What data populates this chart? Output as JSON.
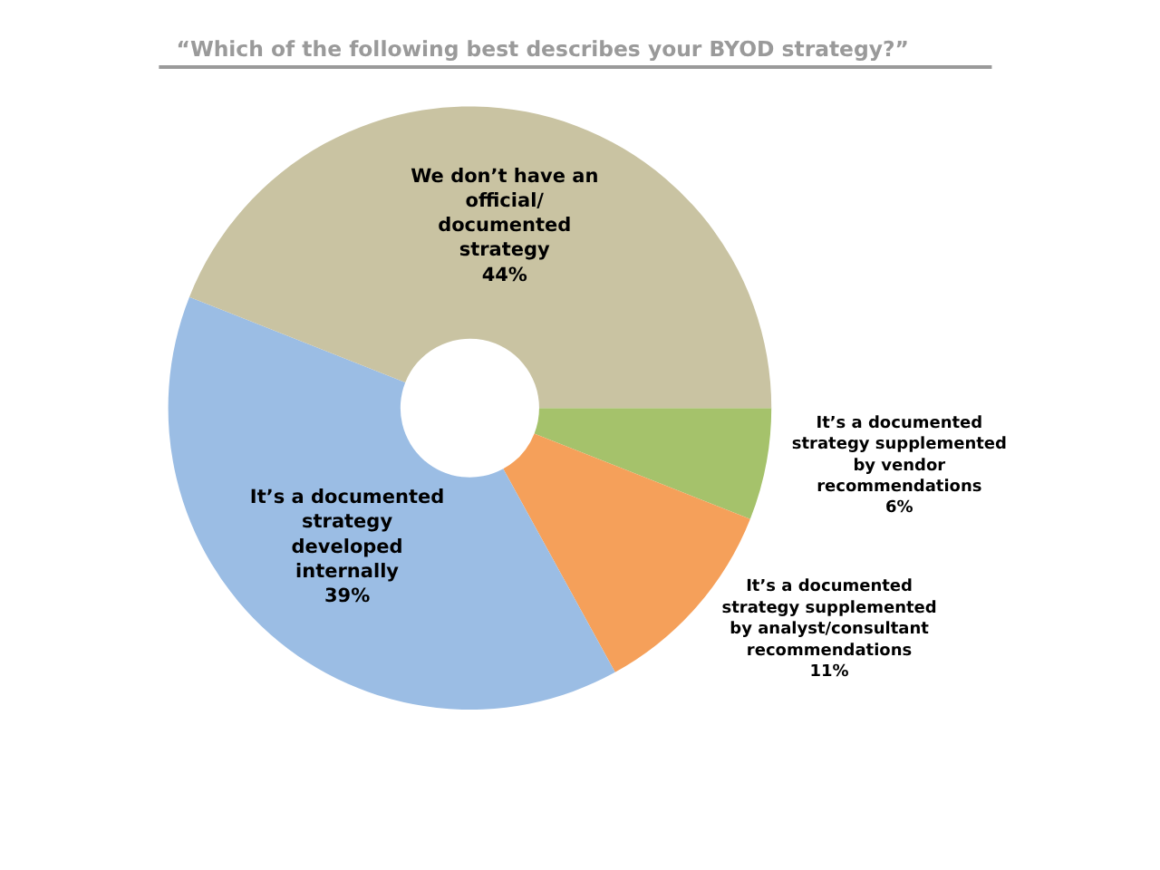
{
  "chart_data": {
    "type": "donut",
    "title": "“Which of the following best describes your BYOD strategy?”",
    "categories": [
      "It’s a documented\nstrategy supplemented\nby vendor\nrecommendations",
      "It’s a documented\nstrategy supplemented\nby analyst/consultant\nrecommendations",
      "It’s a documented\nstrategy\ndeveloped\ninternally",
      "We don’t have an\nofficial/\ndocumented\nstrategy"
    ],
    "values": [
      6,
      11,
      39,
      44
    ],
    "value_labels": [
      "6%",
      "11%",
      "39%",
      "44%"
    ],
    "colors": [
      "#a5c26b",
      "#f5a05a",
      "#9bbde4",
      "#c9c3a2"
    ]
  }
}
